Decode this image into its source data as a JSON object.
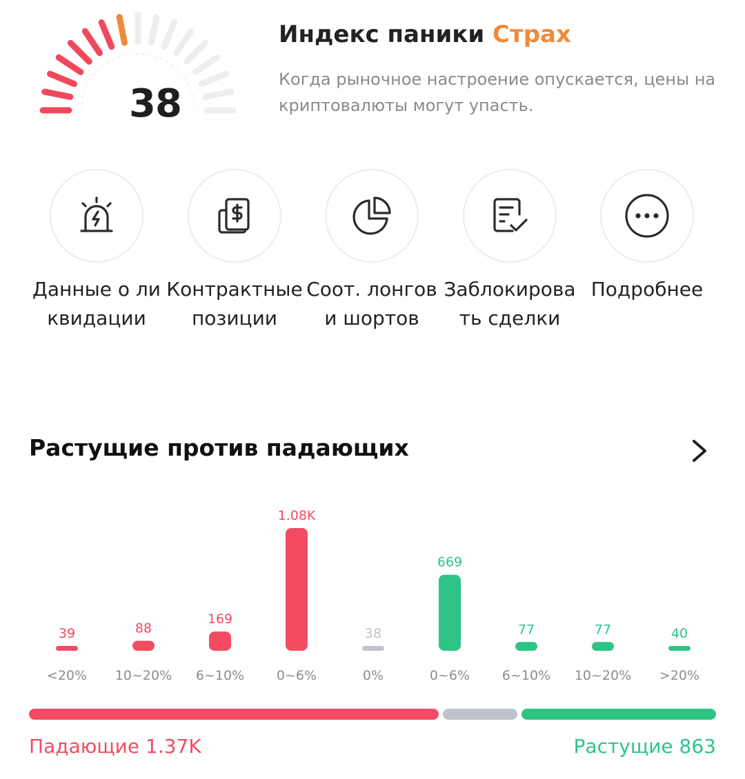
{
  "fear_greed": {
    "value": "38",
    "title": "Индекс паники",
    "status": "Страх",
    "description": "Когда рыночное настроение опускается, цены на криптовалюты могут упасть.",
    "level": 0.38,
    "colors": {
      "status": "#f08a3a",
      "low": "#f1485e",
      "inactive": "#eeeeee"
    }
  },
  "shortcuts": [
    {
      "label": "Данные о ликвидации",
      "icon": "alarm-siren-icon"
    },
    {
      "label": "Контрактные позиции",
      "icon": "dollar-document-icon"
    },
    {
      "label": "Соот. лонгов и шортов",
      "icon": "pie-chart-icon"
    },
    {
      "label": "Заблокировать сделки",
      "icon": "checklist-icon"
    },
    {
      "label": "Подробнее",
      "icon": "more-dots-icon"
    }
  ],
  "rise_fall": {
    "title": "Растущие против падающих",
    "chart_data": {
      "type": "bar",
      "categories": [
        "<20%",
        "10~20%",
        "6~10%",
        "0~6%",
        "0%",
        "0~6%",
        "6~10%",
        "10~20%",
        ">20%"
      ],
      "values": [
        39,
        88,
        169,
        1080,
        38,
        669,
        77,
        77,
        40
      ],
      "value_labels": [
        "39",
        "88",
        "169",
        "1.08K",
        "38",
        "669",
        "77",
        "77",
        "40"
      ],
      "groups": [
        "fall",
        "fall",
        "fall",
        "fall",
        "flat",
        "rise",
        "rise",
        "rise",
        "rise"
      ],
      "ylim": [
        0,
        1080
      ]
    },
    "totals": {
      "fall": 1370,
      "flat": 38,
      "rise": 863
    },
    "fall_label": "Падающие 1.37K",
    "rise_label": "Растущие 863",
    "colors": {
      "fall": "#f24b62",
      "flat": "#bfc3cc",
      "rise": "#2ec486"
    }
  }
}
